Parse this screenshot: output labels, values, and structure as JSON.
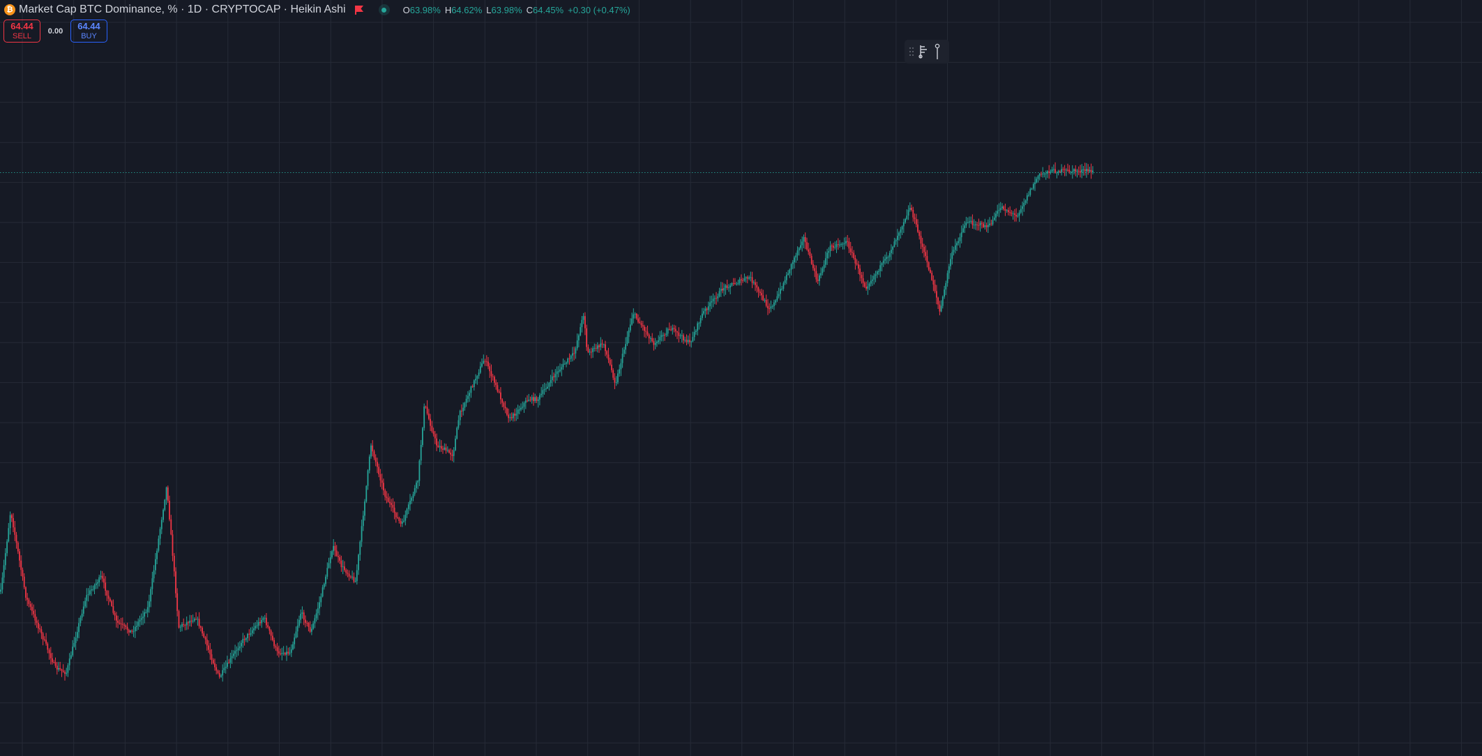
{
  "legend": {
    "logo_glyph": "₿",
    "title": "Market Cap BTC Dominance, % · 1D · CRYPTOCAP · Heikin Ashi",
    "ohlc": {
      "o_label": "O",
      "o_value": "63.98%",
      "h_label": "H",
      "h_value": "64.62%",
      "l_label": "L",
      "l_value": "63.98%",
      "c_label": "C",
      "c_value": "64.45%",
      "change": "+0.30 (+0.47%)"
    },
    "icons": {
      "flag": "flag-icon",
      "status": "market-open-dot-icon"
    }
  },
  "trade": {
    "sell_price": "64.44",
    "sell_label": "SELL",
    "spread": "0.00",
    "buy_price": "64.44",
    "buy_label": "BUY"
  },
  "toolbar_icons": [
    "drag-handle-icon",
    "fork-tool-icon",
    "measure-pin-icon"
  ],
  "colors": {
    "background": "#161a25",
    "grid": "#262b37",
    "up": "#26a69a",
    "down": "#f23645",
    "price_line": "#26a69a"
  },
  "chart_data": {
    "type": "candlestick",
    "style": "Heikin Ashi",
    "interval": "1D",
    "title": "Market Cap BTC Dominance, %",
    "last_close": 64.45,
    "grid": true,
    "path": [
      [
        0,
        0.17
      ],
      [
        0.009,
        0.33
      ],
      [
        0.023,
        0.16
      ],
      [
        0.05,
        0.02
      ],
      [
        0.06,
        0.01
      ],
      [
        0.078,
        0.16
      ],
      [
        0.092,
        0.2
      ],
      [
        0.106,
        0.11
      ],
      [
        0.12,
        0.09
      ],
      [
        0.135,
        0.14
      ],
      [
        0.152,
        0.38
      ],
      [
        0.163,
        0.1
      ],
      [
        0.179,
        0.12
      ],
      [
        0.2,
        0.0
      ],
      [
        0.22,
        0.07
      ],
      [
        0.241,
        0.12
      ],
      [
        0.253,
        0.05
      ],
      [
        0.265,
        0.05
      ],
      [
        0.275,
        0.13
      ],
      [
        0.284,
        0.09
      ],
      [
        0.292,
        0.15
      ],
      [
        0.304,
        0.26
      ],
      [
        0.312,
        0.22
      ],
      [
        0.325,
        0.19
      ],
      [
        0.339,
        0.46
      ],
      [
        0.352,
        0.36
      ],
      [
        0.367,
        0.3
      ],
      [
        0.382,
        0.39
      ],
      [
        0.388,
        0.54
      ],
      [
        0.399,
        0.46
      ],
      [
        0.414,
        0.44
      ],
      [
        0.42,
        0.52
      ],
      [
        0.443,
        0.63
      ],
      [
        0.466,
        0.51
      ],
      [
        0.483,
        0.55
      ],
      [
        0.492,
        0.55
      ],
      [
        0.508,
        0.6
      ],
      [
        0.525,
        0.64
      ],
      [
        0.534,
        0.72
      ],
      [
        0.537,
        0.64
      ],
      [
        0.552,
        0.66
      ],
      [
        0.563,
        0.58
      ],
      [
        0.579,
        0.72
      ],
      [
        0.598,
        0.66
      ],
      [
        0.613,
        0.69
      ],
      [
        0.631,
        0.66
      ],
      [
        0.643,
        0.72
      ],
      [
        0.662,
        0.77
      ],
      [
        0.686,
        0.79
      ],
      [
        0.703,
        0.73
      ],
      [
        0.709,
        0.74
      ],
      [
        0.735,
        0.87
      ],
      [
        0.748,
        0.78
      ],
      [
        0.759,
        0.85
      ],
      [
        0.775,
        0.86
      ],
      [
        0.792,
        0.77
      ],
      [
        0.812,
        0.83
      ],
      [
        0.833,
        0.93
      ],
      [
        0.855,
        0.77
      ],
      [
        0.86,
        0.72
      ],
      [
        0.87,
        0.83
      ],
      [
        0.884,
        0.9
      ],
      [
        0.905,
        0.89
      ],
      [
        0.916,
        0.93
      ],
      [
        0.93,
        0.91
      ],
      [
        0.95,
        0.99
      ],
      [
        0.96,
        1.0
      ]
    ]
  }
}
